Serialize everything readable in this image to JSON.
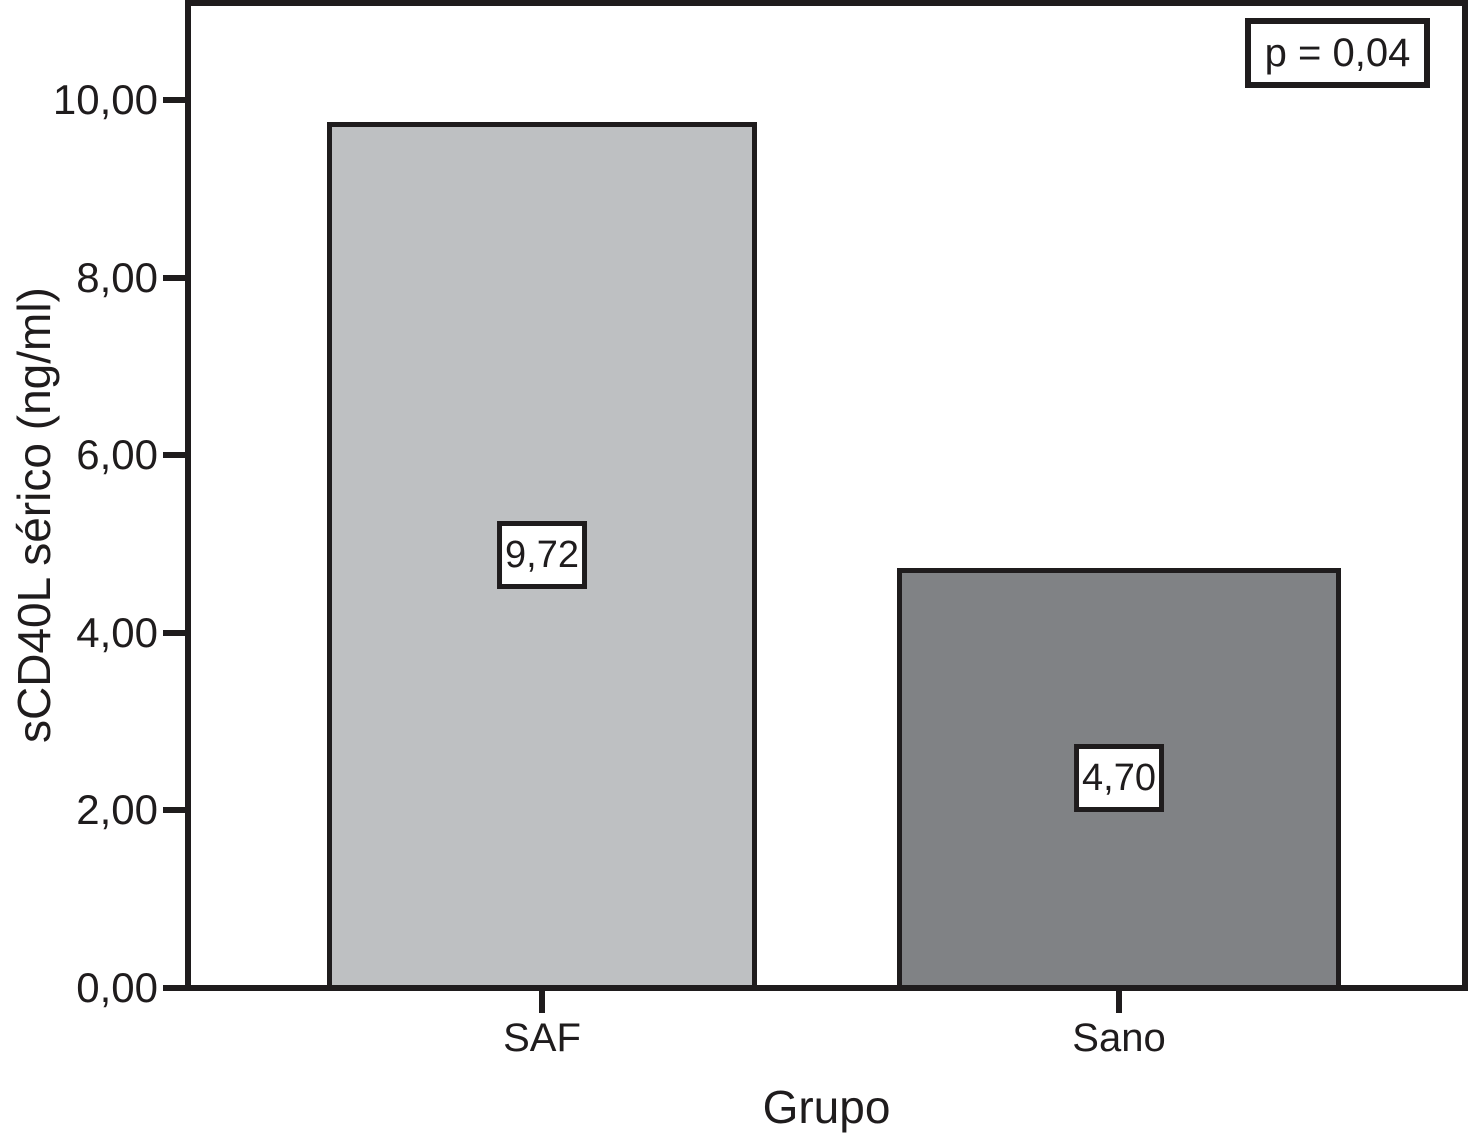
{
  "chart_data": {
    "type": "bar",
    "categories": [
      "SAF",
      "Sano"
    ],
    "values": [
      9.72,
      4.7
    ],
    "bar_value_labels": [
      "9,72",
      "4,70"
    ],
    "bar_colors": [
      "#bec0c2",
      "#808285"
    ],
    "xlabel": "Grupo",
    "ylabel": "sCD40L sérico (ng/ml)",
    "ylim": [
      0,
      11.1
    ],
    "ytick_values": [
      0,
      2,
      4,
      6,
      8,
      10
    ],
    "ytick_labels": [
      "0,00",
      "2,00",
      "4,00",
      "6,00",
      "8,00",
      "10,00"
    ],
    "annotation": "p = 0,04",
    "grid": false,
    "legend_position": "none",
    "frame_color": "#1f1c1d",
    "background_color": "#ffffff"
  }
}
